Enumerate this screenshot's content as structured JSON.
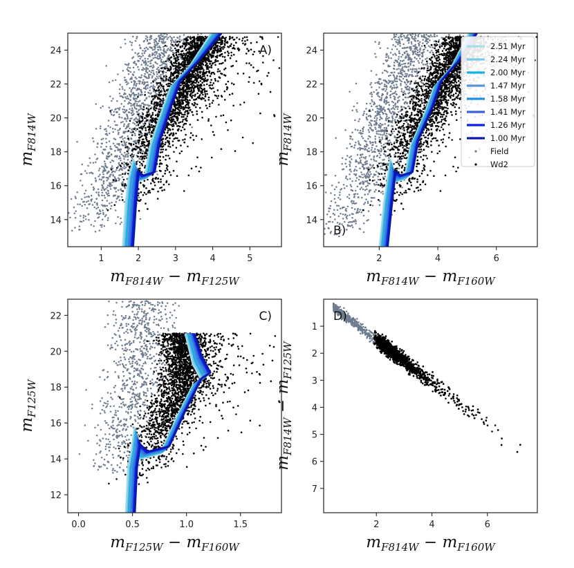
{
  "colors": {
    "field": "#6e7c8f",
    "wd2": "#000000",
    "isochrones": [
      "#a7dde8",
      "#7fc8e9",
      "#12b4e4",
      "#5b92dd",
      "#1c8fe8",
      "#3a62d8",
      "#0a1ee0",
      "#0818a8"
    ]
  },
  "chart_data": [
    {
      "id": "A",
      "type": "scatter",
      "panel_label": "A)",
      "xlabel": {
        "main": "m",
        "sub1": "F814W",
        "mid": " − m",
        "sub2": "F125W"
      },
      "ylabel": {
        "main": "m",
        "sub": "F814W"
      },
      "xlim": [
        0.1,
        5.85
      ],
      "ylim": [
        25.0,
        12.4
      ],
      "xticks": [
        1,
        2,
        3,
        4,
        5
      ],
      "xtick_labels": [
        "1",
        "2",
        "3",
        "4",
        "5"
      ],
      "yticks": [
        14,
        16,
        18,
        20,
        22,
        24
      ],
      "ytick_labels": [
        "14",
        "16",
        "18",
        "20",
        "22",
        "24"
      ],
      "field_ridge": [
        [
          0.55,
          13.2
        ],
        [
          1.2,
          16.0
        ],
        [
          1.8,
          19.5
        ],
        [
          2.3,
          22.5
        ],
        [
          2.7,
          24.6
        ]
      ],
      "field_spread": 0.42,
      "wd2_ridge": [
        [
          2.0,
          14.4
        ],
        [
          2.05,
          16.5
        ],
        [
          2.4,
          18.5
        ],
        [
          2.85,
          20.5
        ],
        [
          3.2,
          22.0
        ],
        [
          3.5,
          23.4
        ],
        [
          3.9,
          24.8
        ]
      ],
      "wd2_spread": 0.33,
      "isochrone": [
        [
          1.72,
          12.4
        ],
        [
          1.8,
          15.0
        ],
        [
          1.87,
          16.6
        ],
        [
          2.0,
          16.4
        ],
        [
          2.3,
          16.6
        ],
        [
          2.45,
          18.5
        ],
        [
          2.75,
          20.5
        ],
        [
          3.0,
          22.0
        ],
        [
          3.5,
          23.2
        ],
        [
          4.1,
          25.0
        ]
      ],
      "iso_start": [
        1.94,
        17.6
      ]
    },
    {
      "id": "B",
      "type": "scatter",
      "panel_label": "B)",
      "xlabel": {
        "main": "m",
        "sub1": "F814W",
        "mid": " − m",
        "sub2": "F160W"
      },
      "ylabel": {
        "main": "m",
        "sub": "F814W"
      },
      "xlim": [
        0.1,
        7.4
      ],
      "ylim": [
        25.0,
        12.4
      ],
      "xticks": [
        2,
        4,
        6
      ],
      "xtick_labels": [
        "2",
        "4",
        "6"
      ],
      "yticks": [
        14,
        16,
        18,
        20,
        22,
        24
      ],
      "ytick_labels": [
        "14",
        "16",
        "18",
        "20",
        "22",
        "24"
      ],
      "field_ridge": [
        [
          0.6,
          13.0
        ],
        [
          1.4,
          16.0
        ],
        [
          2.1,
          19.5
        ],
        [
          2.8,
          22.5
        ],
        [
          3.3,
          24.6
        ]
      ],
      "field_spread": 0.52,
      "wd2_ridge": [
        [
          2.5,
          14.4
        ],
        [
          2.6,
          16.5
        ],
        [
          3.1,
          18.5
        ],
        [
          3.7,
          20.5
        ],
        [
          4.1,
          22.0
        ],
        [
          4.6,
          23.4
        ],
        [
          5.0,
          24.8
        ]
      ],
      "wd2_spread": 0.42,
      "isochrone": [
        [
          2.15,
          12.4
        ],
        [
          2.3,
          15.0
        ],
        [
          2.42,
          16.6
        ],
        [
          2.6,
          16.4
        ],
        [
          3.0,
          16.6
        ],
        [
          3.2,
          18.5
        ],
        [
          3.7,
          20.5
        ],
        [
          4.0,
          22.0
        ],
        [
          4.6,
          23.2
        ],
        [
          5.2,
          25.0
        ]
      ],
      "iso_start": [
        2.45,
        17.6
      ],
      "legend": {
        "position": "upper-right",
        "isochrones": [
          "2.51 Myr",
          "2.24 Myr",
          "2.00 Myr",
          "1.47 Myr",
          "1.58 Myr",
          "1.41 Myr",
          "1.26 Myr",
          "1.00 Myr"
        ],
        "field": "Field",
        "wd2": "Wd2"
      }
    },
    {
      "id": "C",
      "type": "scatter",
      "panel_label": "C)",
      "xlabel": {
        "main": "m",
        "sub1": "F125W",
        "mid": " − m",
        "sub2": "F160W"
      },
      "ylabel": {
        "main": "m",
        "sub": "F125W"
      },
      "xlim": [
        -0.1,
        1.88
      ],
      "ylim": [
        22.9,
        11.0
      ],
      "xticks": [
        0.0,
        0.5,
        1.0,
        1.5
      ],
      "xtick_labels": [
        "0.0",
        "0.5",
        "1.0",
        "1.5"
      ],
      "yticks": [
        12,
        14,
        16,
        18,
        20,
        22
      ],
      "ytick_labels": [
        "12",
        "14",
        "16",
        "18",
        "20",
        "22"
      ],
      "field_ridge": [
        [
          0.3,
          13.0
        ],
        [
          0.45,
          16.0
        ],
        [
          0.55,
          19.0
        ],
        [
          0.6,
          22.4
        ]
      ],
      "field_spread": 0.15,
      "wd2_ridge": [
        [
          0.55,
          12.5
        ],
        [
          0.65,
          14.5
        ],
        [
          0.85,
          16.5
        ],
        [
          0.95,
          18.0
        ],
        [
          1.0,
          19.5
        ],
        [
          0.97,
          21.0
        ]
      ],
      "wd2_spread": 0.11,
      "isochrone": [
        [
          0.48,
          11.0
        ],
        [
          0.5,
          13.5
        ],
        [
          0.53,
          14.6
        ],
        [
          0.6,
          14.2
        ],
        [
          0.8,
          14.5
        ],
        [
          0.95,
          16.5
        ],
        [
          1.1,
          18.3
        ],
        [
          1.18,
          18.6
        ],
        [
          1.1,
          19.5
        ],
        [
          1.03,
          21.0
        ]
      ],
      "iso_start": [
        0.54,
        15.8
      ]
    },
    {
      "id": "D",
      "type": "scatter",
      "panel_label": "D)",
      "xlabel": {
        "main": "m",
        "sub1": "F814W",
        "mid": " − m",
        "sub2": "F160W"
      },
      "ylabel": {
        "main": "m",
        "sub1": "F814W",
        "mid": " − m",
        "sub2": "F125W"
      },
      "xlim": [
        0.1,
        7.8
      ],
      "ylim": [
        0.0,
        7.9
      ],
      "xticks": [
        2,
        4,
        6
      ],
      "xtick_labels": [
        "2",
        "4",
        "6"
      ],
      "yticks": [
        1,
        2,
        3,
        4,
        5,
        6,
        7
      ],
      "ytick_labels": [
        "1",
        "2",
        "3",
        "4",
        "5",
        "6",
        "7"
      ],
      "relation": {
        "slope": 0.78,
        "intercept": -0.05
      },
      "field_xrange": [
        0.45,
        3.3
      ],
      "wd2_xrange": [
        1.9,
        7.8
      ]
    }
  ]
}
